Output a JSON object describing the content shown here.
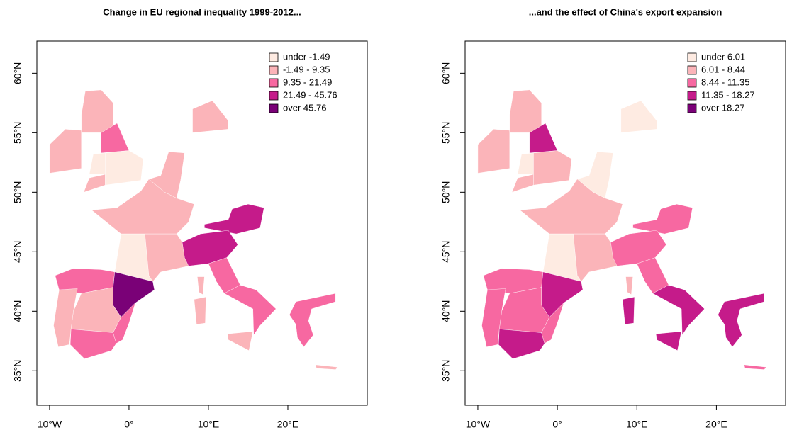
{
  "maps": [
    {
      "title": "Change in EU regional inequality 1999-2012...",
      "legend": [
        {
          "label": "under -1.49",
          "color": "#feebe2"
        },
        {
          "label": "-1.49 - 9.35",
          "color": "#fbb4b9"
        },
        {
          "label": "9.35 - 21.49",
          "color": "#f768a1"
        },
        {
          "label": "21.49 - 45.76",
          "color": "#c51b8a"
        },
        {
          "label": "over 45.76",
          "color": "#7a0177"
        }
      ],
      "xlim": [
        -11.6,
        30
      ],
      "ylim": [
        32.1,
        62.7
      ],
      "xticks": [
        {
          "value": -10,
          "label": "10°W"
        },
        {
          "value": 0,
          "label": "0°"
        },
        {
          "value": 10,
          "label": "10°E"
        },
        {
          "value": 20,
          "label": "20°E"
        }
      ],
      "yticks": [
        {
          "value": 35,
          "label": "35°N"
        },
        {
          "value": 40,
          "label": "40°N"
        },
        {
          "value": 45,
          "label": "45°N"
        },
        {
          "value": 50,
          "label": "50°N"
        },
        {
          "value": 55,
          "label": "55°N"
        },
        {
          "value": 60,
          "label": "60°N"
        }
      ]
    },
    {
      "title": "...and the effect of China's export expansion",
      "legend": [
        {
          "label": "under 6.01",
          "color": "#feebe2"
        },
        {
          "label": "6.01 - 8.44",
          "color": "#fbb4b9"
        },
        {
          "label": "8.44 - 11.35",
          "color": "#f768a1"
        },
        {
          "label": "11.35 - 18.27",
          "color": "#c51b8a"
        },
        {
          "label": "over 18.27",
          "color": "#7a0177"
        }
      ],
      "xlim": [
        -11.6,
        28.7
      ],
      "ylim": [
        32.1,
        62.7
      ],
      "xticks": [
        {
          "value": -10,
          "label": "10°W"
        },
        {
          "value": 0,
          "label": "0°"
        },
        {
          "value": 10,
          "label": "10°E"
        },
        {
          "value": 20,
          "label": "20°E"
        }
      ],
      "yticks": [
        {
          "value": 35,
          "label": "35°N"
        },
        {
          "value": 40,
          "label": "40°N"
        },
        {
          "value": 45,
          "label": "45°N"
        },
        {
          "value": 50,
          "label": "50°N"
        },
        {
          "value": 55,
          "label": "55°N"
        },
        {
          "value": 60,
          "label": "60°N"
        }
      ]
    }
  ]
}
